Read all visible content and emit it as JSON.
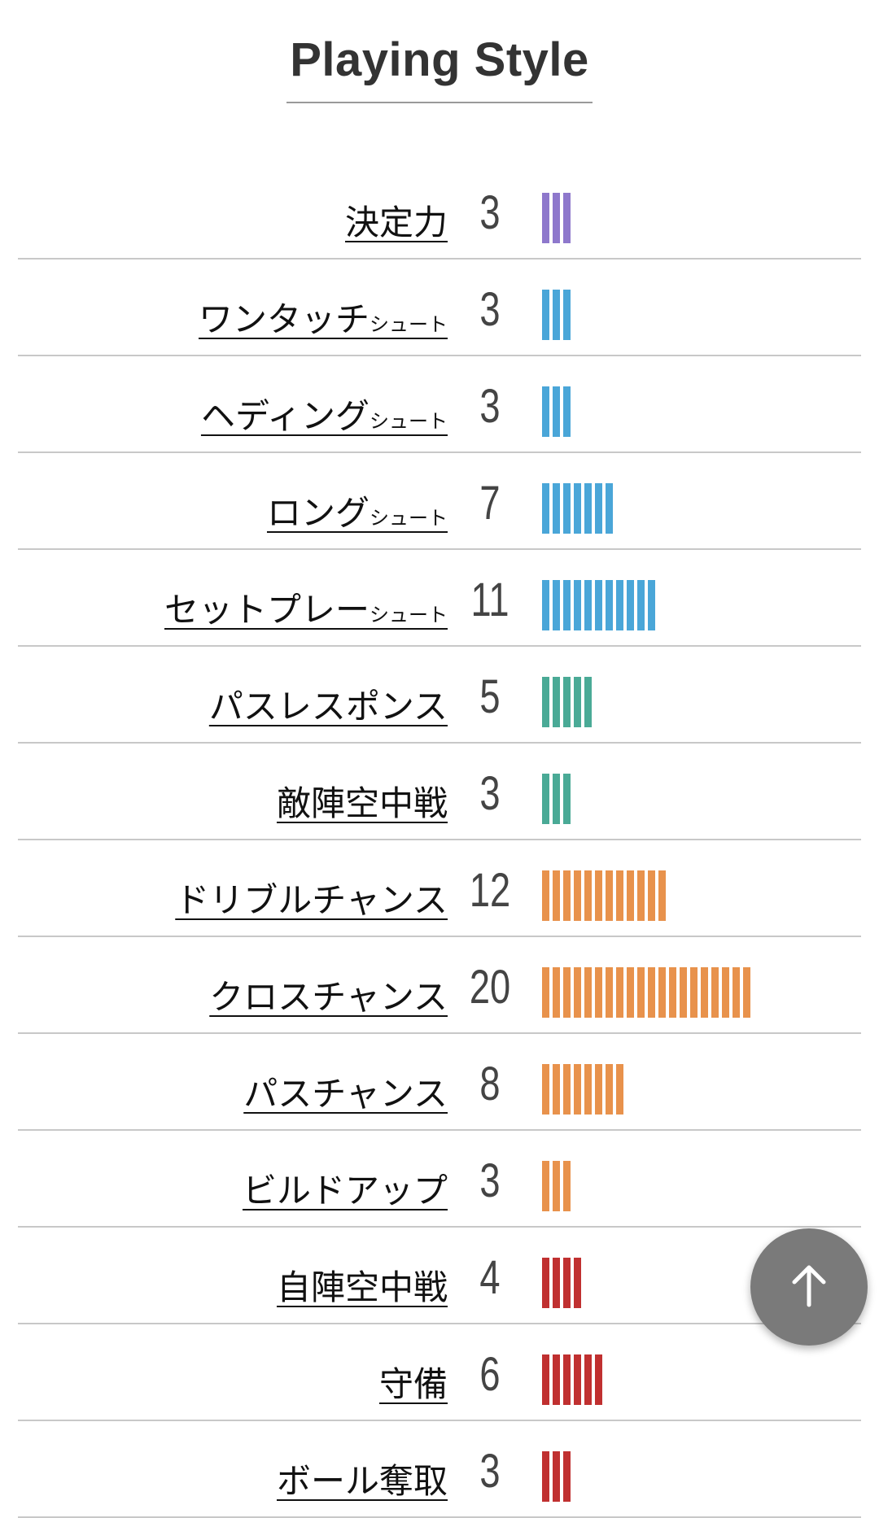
{
  "page": {
    "title": "Playing Style"
  },
  "colors": {
    "purple": "#8e78cc",
    "blue": "#4aa6d8",
    "green": "#4aaa96",
    "orange": "#e8924c",
    "red": "#c03030"
  },
  "rows": [
    {
      "label": "決定力",
      "sub": "",
      "value": "3",
      "count": 3,
      "color": "purple"
    },
    {
      "label": "ワンタッチ",
      "sub": "シュート",
      "value": "3",
      "count": 3,
      "color": "blue"
    },
    {
      "label": "ヘディング",
      "sub": "シュート",
      "value": "3",
      "count": 3,
      "color": "blue"
    },
    {
      "label": "ロング",
      "sub": "シュート",
      "value": "7",
      "count": 7,
      "color": "blue"
    },
    {
      "label": "セットプレー",
      "sub": "シュート",
      "value": "11",
      "count": 11,
      "color": "blue"
    },
    {
      "label": "パスレスポンス",
      "sub": "",
      "value": "5",
      "count": 5,
      "color": "green"
    },
    {
      "label": "敵陣空中戦",
      "sub": "",
      "value": "3",
      "count": 3,
      "color": "green"
    },
    {
      "label": "ドリブルチャンス",
      "sub": "",
      "value": "12",
      "count": 12,
      "color": "orange"
    },
    {
      "label": "クロスチャンス",
      "sub": "",
      "value": "20",
      "count": 20,
      "color": "orange"
    },
    {
      "label": "パスチャンス",
      "sub": "",
      "value": "8",
      "count": 8,
      "color": "orange"
    },
    {
      "label": "ビルドアップ",
      "sub": "",
      "value": "3",
      "count": 3,
      "color": "orange"
    },
    {
      "label": "自陣空中戦",
      "sub": "",
      "value": "4",
      "count": 4,
      "color": "red"
    },
    {
      "label": "守備",
      "sub": "",
      "value": "6",
      "count": 6,
      "color": "red"
    },
    {
      "label": "ボール奪取",
      "sub": "",
      "value": "3",
      "count": 3,
      "color": "red"
    }
  ],
  "scroll_top": {
    "icon": "arrow-up-icon"
  }
}
